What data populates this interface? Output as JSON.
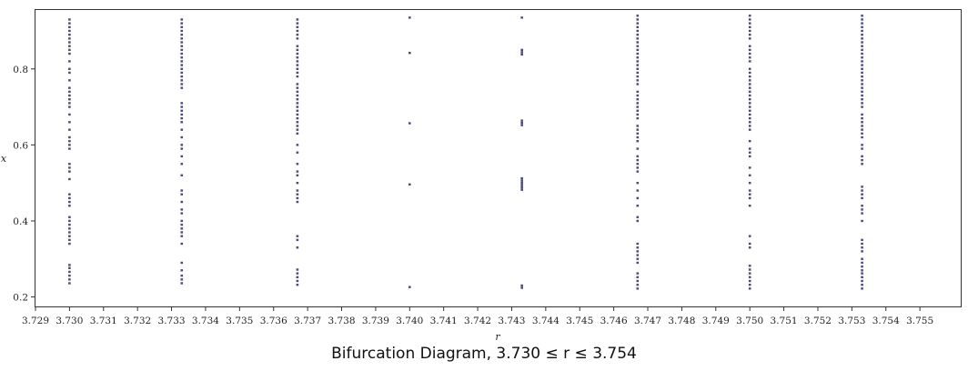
{
  "caption": "Bifurcation Diagram, 3.730 ≤ r ≤ 3.754",
  "chart_data": {
    "type": "scatter",
    "title": "",
    "xlabel": "r",
    "ylabel": "x",
    "xlim": [
      3.729,
      3.7562
    ],
    "ylim": [
      0.175,
      0.955
    ],
    "grid": false,
    "marker_color": "#4b4b78",
    "x_ticks": [
      "3.729",
      "3.730",
      "3.731",
      "3.732",
      "3.733",
      "3.734",
      "3.735",
      "3.736",
      "3.737",
      "3.738",
      "3.739",
      "3.740",
      "3.741",
      "3.742",
      "3.743",
      "3.744",
      "3.745",
      "3.746",
      "3.747",
      "3.748",
      "3.749",
      "3.750",
      "3.751",
      "3.752",
      "3.753",
      "3.754",
      "3.755"
    ],
    "y_ticks": [
      "0.2",
      "0.4",
      "0.6",
      "0.8"
    ],
    "series": [
      {
        "x": 3.73,
        "y": [
          0.236,
          0.246,
          0.256,
          0.266,
          0.276,
          0.284,
          0.34,
          0.35,
          0.36,
          0.37,
          0.38,
          0.39,
          0.4,
          0.41,
          0.44,
          0.45,
          0.46,
          0.47,
          0.51,
          0.53,
          0.54,
          0.55,
          0.59,
          0.6,
          0.61,
          0.62,
          0.64,
          0.66,
          0.68,
          0.7,
          0.71,
          0.72,
          0.73,
          0.74,
          0.75,
          0.77,
          0.79,
          0.8,
          0.82,
          0.84,
          0.85,
          0.86,
          0.87,
          0.88,
          0.89,
          0.9,
          0.91,
          0.92,
          0.93
        ]
      },
      {
        "x": 3.7333,
        "y": [
          0.236,
          0.246,
          0.256,
          0.27,
          0.29,
          0.34,
          0.36,
          0.37,
          0.38,
          0.39,
          0.4,
          0.42,
          0.43,
          0.45,
          0.47,
          0.48,
          0.52,
          0.55,
          0.57,
          0.59,
          0.6,
          0.62,
          0.64,
          0.66,
          0.67,
          0.68,
          0.69,
          0.7,
          0.71,
          0.75,
          0.76,
          0.77,
          0.78,
          0.79,
          0.8,
          0.81,
          0.82,
          0.83,
          0.84,
          0.85,
          0.86,
          0.87,
          0.88,
          0.89,
          0.9,
          0.91,
          0.92,
          0.93
        ]
      },
      {
        "x": 3.7367,
        "y": [
          0.232,
          0.242,
          0.252,
          0.262,
          0.272,
          0.33,
          0.35,
          0.36,
          0.45,
          0.46,
          0.47,
          0.48,
          0.5,
          0.52,
          0.53,
          0.55,
          0.58,
          0.6,
          0.63,
          0.64,
          0.65,
          0.66,
          0.67,
          0.68,
          0.69,
          0.7,
          0.71,
          0.72,
          0.73,
          0.74,
          0.75,
          0.76,
          0.78,
          0.79,
          0.8,
          0.81,
          0.82,
          0.83,
          0.84,
          0.85,
          0.86,
          0.88,
          0.89,
          0.9,
          0.91,
          0.92,
          0.93
        ]
      },
      {
        "x": 3.74,
        "y": [
          0.226,
          0.496,
          0.657,
          0.842,
          0.935
        ]
      },
      {
        "x": 3.7433,
        "y": [
          0.224,
          0.23,
          0.482,
          0.488,
          0.494,
          0.5,
          0.506,
          0.512,
          0.652,
          0.658,
          0.664,
          0.838,
          0.844,
          0.85,
          0.935
        ]
      },
      {
        "x": 3.7467,
        "y": [
          0.222,
          0.232,
          0.242,
          0.252,
          0.262,
          0.29,
          0.3,
          0.31,
          0.32,
          0.33,
          0.34,
          0.4,
          0.41,
          0.44,
          0.46,
          0.48,
          0.5,
          0.53,
          0.54,
          0.55,
          0.56,
          0.57,
          0.59,
          0.61,
          0.62,
          0.63,
          0.64,
          0.65,
          0.67,
          0.68,
          0.69,
          0.7,
          0.71,
          0.72,
          0.73,
          0.74,
          0.76,
          0.77,
          0.78,
          0.79,
          0.8,
          0.81,
          0.82,
          0.83,
          0.84,
          0.85,
          0.86,
          0.87,
          0.88,
          0.89,
          0.9,
          0.91,
          0.92,
          0.93,
          0.94
        ]
      },
      {
        "x": 3.75,
        "y": [
          0.222,
          0.232,
          0.242,
          0.252,
          0.262,
          0.272,
          0.282,
          0.33,
          0.34,
          0.36,
          0.44,
          0.46,
          0.47,
          0.48,
          0.5,
          0.52,
          0.54,
          0.57,
          0.58,
          0.59,
          0.61,
          0.64,
          0.65,
          0.66,
          0.67,
          0.68,
          0.69,
          0.7,
          0.71,
          0.72,
          0.73,
          0.74,
          0.75,
          0.76,
          0.77,
          0.78,
          0.79,
          0.8,
          0.82,
          0.83,
          0.84,
          0.85,
          0.86,
          0.88,
          0.89,
          0.9,
          0.91,
          0.92,
          0.93,
          0.94
        ]
      },
      {
        "x": 3.7533,
        "y": [
          0.222,
          0.232,
          0.242,
          0.252,
          0.262,
          0.27,
          0.28,
          0.29,
          0.3,
          0.32,
          0.33,
          0.34,
          0.35,
          0.4,
          0.42,
          0.43,
          0.44,
          0.46,
          0.47,
          0.48,
          0.49,
          0.55,
          0.56,
          0.57,
          0.59,
          0.6,
          0.62,
          0.63,
          0.64,
          0.65,
          0.66,
          0.67,
          0.68,
          0.7,
          0.71,
          0.72,
          0.73,
          0.74,
          0.75,
          0.76,
          0.77,
          0.78,
          0.79,
          0.8,
          0.81,
          0.82,
          0.83,
          0.84,
          0.85,
          0.86,
          0.87,
          0.88,
          0.89,
          0.9,
          0.91,
          0.92,
          0.93,
          0.94
        ]
      }
    ]
  }
}
